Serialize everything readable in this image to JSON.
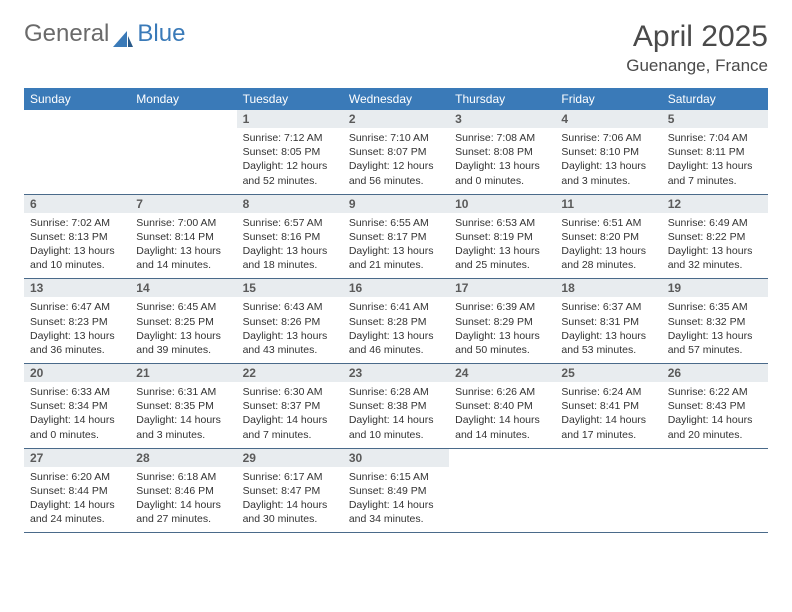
{
  "brand": {
    "part1": "General",
    "part2": "Blue"
  },
  "title": "April 2025",
  "location": "Guenange, France",
  "colors": {
    "header_bg": "#3a7ab8",
    "header_text": "#ffffff",
    "daynum_bg": "#e8ecef",
    "daynum_text": "#5a5a5a",
    "body_text": "#333333",
    "rule": "#4a6a8a",
    "page_bg": "#ffffff"
  },
  "typography": {
    "title_fontsize": 30,
    "location_fontsize": 17,
    "dayheader_fontsize": 12,
    "daynum_fontsize": 12,
    "detail_fontsize": 10.5
  },
  "day_headers": [
    "Sunday",
    "Monday",
    "Tuesday",
    "Wednesday",
    "Thursday",
    "Friday",
    "Saturday"
  ],
  "weeks": [
    [
      null,
      null,
      {
        "n": "1",
        "sunrise": "Sunrise: 7:12 AM",
        "sunset": "Sunset: 8:05 PM",
        "daylight": "Daylight: 12 hours and 52 minutes."
      },
      {
        "n": "2",
        "sunrise": "Sunrise: 7:10 AM",
        "sunset": "Sunset: 8:07 PM",
        "daylight": "Daylight: 12 hours and 56 minutes."
      },
      {
        "n": "3",
        "sunrise": "Sunrise: 7:08 AM",
        "sunset": "Sunset: 8:08 PM",
        "daylight": "Daylight: 13 hours and 0 minutes."
      },
      {
        "n": "4",
        "sunrise": "Sunrise: 7:06 AM",
        "sunset": "Sunset: 8:10 PM",
        "daylight": "Daylight: 13 hours and 3 minutes."
      },
      {
        "n": "5",
        "sunrise": "Sunrise: 7:04 AM",
        "sunset": "Sunset: 8:11 PM",
        "daylight": "Daylight: 13 hours and 7 minutes."
      }
    ],
    [
      {
        "n": "6",
        "sunrise": "Sunrise: 7:02 AM",
        "sunset": "Sunset: 8:13 PM",
        "daylight": "Daylight: 13 hours and 10 minutes."
      },
      {
        "n": "7",
        "sunrise": "Sunrise: 7:00 AM",
        "sunset": "Sunset: 8:14 PM",
        "daylight": "Daylight: 13 hours and 14 minutes."
      },
      {
        "n": "8",
        "sunrise": "Sunrise: 6:57 AM",
        "sunset": "Sunset: 8:16 PM",
        "daylight": "Daylight: 13 hours and 18 minutes."
      },
      {
        "n": "9",
        "sunrise": "Sunrise: 6:55 AM",
        "sunset": "Sunset: 8:17 PM",
        "daylight": "Daylight: 13 hours and 21 minutes."
      },
      {
        "n": "10",
        "sunrise": "Sunrise: 6:53 AM",
        "sunset": "Sunset: 8:19 PM",
        "daylight": "Daylight: 13 hours and 25 minutes."
      },
      {
        "n": "11",
        "sunrise": "Sunrise: 6:51 AM",
        "sunset": "Sunset: 8:20 PM",
        "daylight": "Daylight: 13 hours and 28 minutes."
      },
      {
        "n": "12",
        "sunrise": "Sunrise: 6:49 AM",
        "sunset": "Sunset: 8:22 PM",
        "daylight": "Daylight: 13 hours and 32 minutes."
      }
    ],
    [
      {
        "n": "13",
        "sunrise": "Sunrise: 6:47 AM",
        "sunset": "Sunset: 8:23 PM",
        "daylight": "Daylight: 13 hours and 36 minutes."
      },
      {
        "n": "14",
        "sunrise": "Sunrise: 6:45 AM",
        "sunset": "Sunset: 8:25 PM",
        "daylight": "Daylight: 13 hours and 39 minutes."
      },
      {
        "n": "15",
        "sunrise": "Sunrise: 6:43 AM",
        "sunset": "Sunset: 8:26 PM",
        "daylight": "Daylight: 13 hours and 43 minutes."
      },
      {
        "n": "16",
        "sunrise": "Sunrise: 6:41 AM",
        "sunset": "Sunset: 8:28 PM",
        "daylight": "Daylight: 13 hours and 46 minutes."
      },
      {
        "n": "17",
        "sunrise": "Sunrise: 6:39 AM",
        "sunset": "Sunset: 8:29 PM",
        "daylight": "Daylight: 13 hours and 50 minutes."
      },
      {
        "n": "18",
        "sunrise": "Sunrise: 6:37 AM",
        "sunset": "Sunset: 8:31 PM",
        "daylight": "Daylight: 13 hours and 53 minutes."
      },
      {
        "n": "19",
        "sunrise": "Sunrise: 6:35 AM",
        "sunset": "Sunset: 8:32 PM",
        "daylight": "Daylight: 13 hours and 57 minutes."
      }
    ],
    [
      {
        "n": "20",
        "sunrise": "Sunrise: 6:33 AM",
        "sunset": "Sunset: 8:34 PM",
        "daylight": "Daylight: 14 hours and 0 minutes."
      },
      {
        "n": "21",
        "sunrise": "Sunrise: 6:31 AM",
        "sunset": "Sunset: 8:35 PM",
        "daylight": "Daylight: 14 hours and 3 minutes."
      },
      {
        "n": "22",
        "sunrise": "Sunrise: 6:30 AM",
        "sunset": "Sunset: 8:37 PM",
        "daylight": "Daylight: 14 hours and 7 minutes."
      },
      {
        "n": "23",
        "sunrise": "Sunrise: 6:28 AM",
        "sunset": "Sunset: 8:38 PM",
        "daylight": "Daylight: 14 hours and 10 minutes."
      },
      {
        "n": "24",
        "sunrise": "Sunrise: 6:26 AM",
        "sunset": "Sunset: 8:40 PM",
        "daylight": "Daylight: 14 hours and 14 minutes."
      },
      {
        "n": "25",
        "sunrise": "Sunrise: 6:24 AM",
        "sunset": "Sunset: 8:41 PM",
        "daylight": "Daylight: 14 hours and 17 minutes."
      },
      {
        "n": "26",
        "sunrise": "Sunrise: 6:22 AM",
        "sunset": "Sunset: 8:43 PM",
        "daylight": "Daylight: 14 hours and 20 minutes."
      }
    ],
    [
      {
        "n": "27",
        "sunrise": "Sunrise: 6:20 AM",
        "sunset": "Sunset: 8:44 PM",
        "daylight": "Daylight: 14 hours and 24 minutes."
      },
      {
        "n": "28",
        "sunrise": "Sunrise: 6:18 AM",
        "sunset": "Sunset: 8:46 PM",
        "daylight": "Daylight: 14 hours and 27 minutes."
      },
      {
        "n": "29",
        "sunrise": "Sunrise: 6:17 AM",
        "sunset": "Sunset: 8:47 PM",
        "daylight": "Daylight: 14 hours and 30 minutes."
      },
      {
        "n": "30",
        "sunrise": "Sunrise: 6:15 AM",
        "sunset": "Sunset: 8:49 PM",
        "daylight": "Daylight: 14 hours and 34 minutes."
      },
      null,
      null,
      null
    ]
  ]
}
